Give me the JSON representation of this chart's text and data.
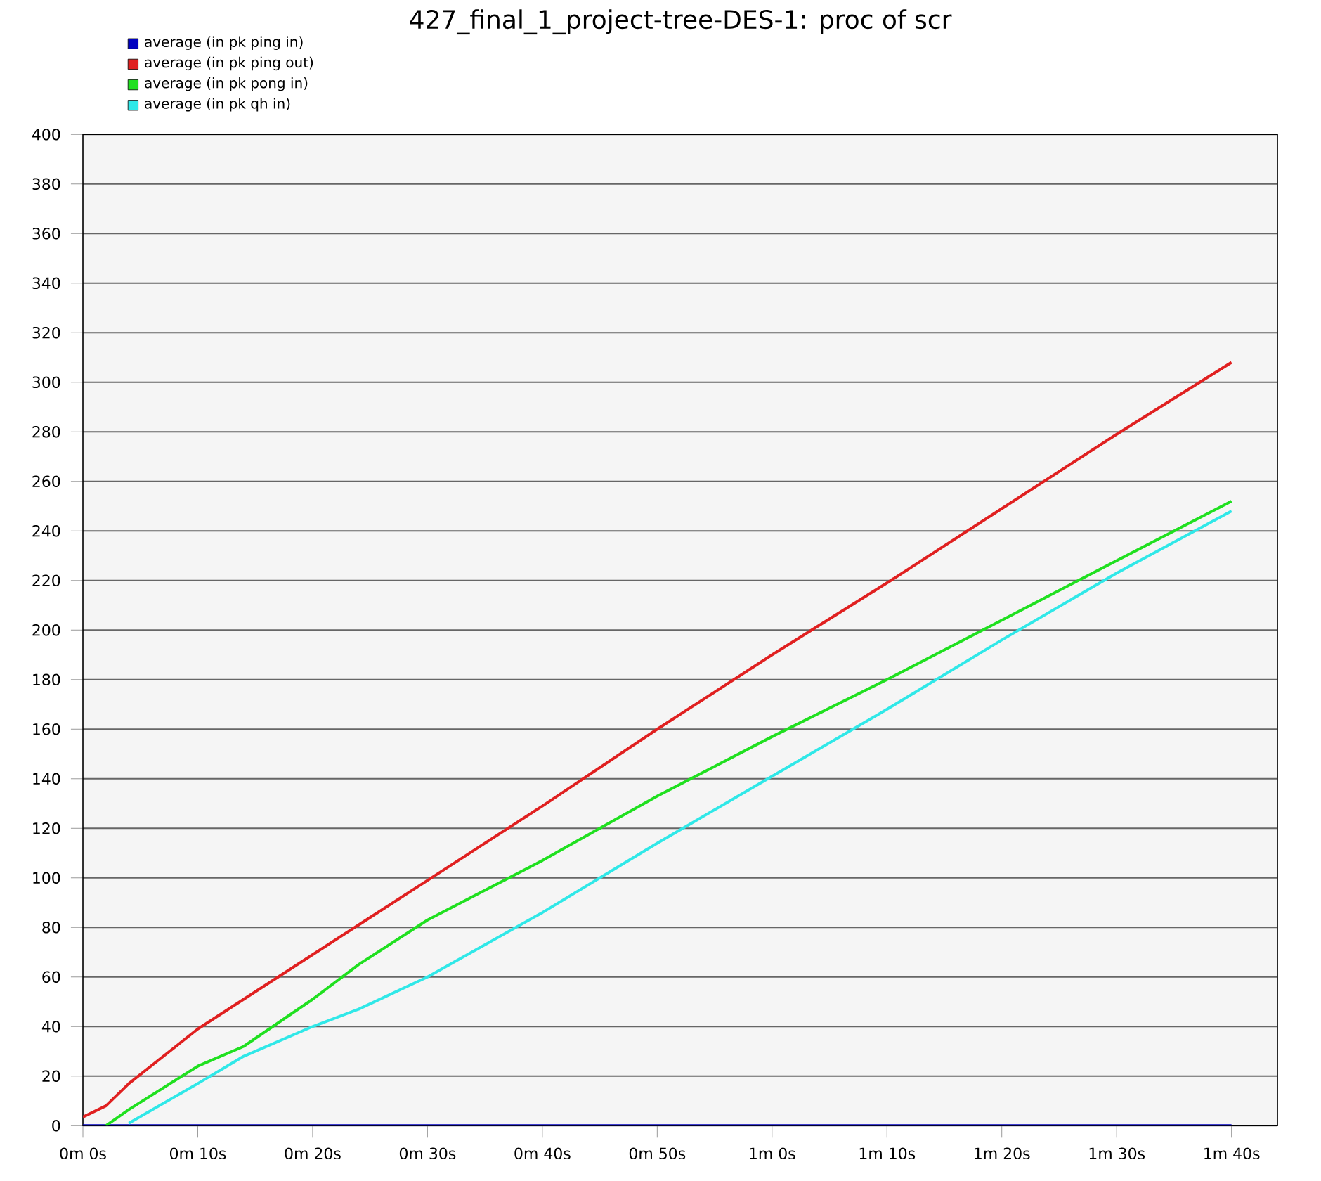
{
  "chart_data": {
    "type": "line",
    "title": "427_final_1_project-tree-DES-1: proc of scr",
    "categories": [
      "0m 0s",
      null,
      null,
      null,
      null,
      "0m 10s",
      null,
      null,
      null,
      null,
      "0m 20s",
      null,
      null,
      null,
      null,
      "0m 30s",
      null,
      null,
      null,
      null,
      "0m 40s",
      null,
      null,
      null,
      null,
      "0m 50s",
      null,
      null,
      null,
      null,
      "1m 0s",
      null,
      null,
      null,
      null,
      "1m 10s",
      null,
      null,
      null,
      null,
      "1m 20s",
      null,
      null,
      null,
      null,
      "1m 30s",
      null,
      null,
      null,
      null,
      "1m 40s",
      null,
      null
    ],
    "ylim": [
      0,
      400
    ],
    "yticks": [
      0,
      20,
      40,
      60,
      80,
      100,
      120,
      140,
      160,
      180,
      200,
      220,
      240,
      260,
      280,
      300,
      320,
      340,
      360,
      380,
      400
    ],
    "grid": "y",
    "legend": "top left",
    "marker": "none",
    "line_style": "solid",
    "series": [
      {
        "name": "average (in pk ping in)",
        "color": "#0000c0",
        "values": [
          0,
          null,
          null,
          null,
          null,
          null,
          null,
          null,
          null,
          null,
          null,
          null,
          null,
          null,
          null,
          null,
          null,
          null,
          null,
          null,
          null,
          null,
          null,
          null,
          null,
          null,
          null,
          null,
          null,
          null,
          null,
          null,
          null,
          null,
          null,
          null,
          null,
          null,
          null,
          null,
          null,
          null,
          null,
          null,
          null,
          null,
          null,
          null,
          null,
          null,
          0,
          null,
          null
        ]
      },
      {
        "name": "average (in pk ping out)",
        "color": "#e02020",
        "values": [
          3.5,
          8,
          17,
          null,
          null,
          39,
          null,
          null,
          null,
          null,
          69,
          null,
          null,
          null,
          null,
          99,
          null,
          null,
          null,
          null,
          129,
          null,
          null,
          null,
          null,
          160,
          null,
          null,
          null,
          null,
          190,
          null,
          null,
          null,
          null,
          219,
          null,
          null,
          null,
          null,
          249,
          null,
          null,
          null,
          null,
          279,
          null,
          null,
          null,
          null,
          308,
          null,
          null
        ]
      },
      {
        "name": "average (in pk pong in)",
        "color": "#20e020",
        "values": [
          null,
          0,
          6.5,
          null,
          null,
          24,
          null,
          32,
          null,
          null,
          51,
          null,
          65,
          null,
          null,
          83,
          null,
          null,
          null,
          null,
          107,
          null,
          null,
          null,
          null,
          133,
          null,
          null,
          null,
          null,
          157,
          null,
          null,
          null,
          null,
          180,
          null,
          null,
          null,
          null,
          204,
          null,
          null,
          null,
          null,
          228,
          null,
          null,
          null,
          null,
          252,
          null,
          null
        ]
      },
      {
        "name": "average (in pk qh in)",
        "color": "#30e8e8",
        "values": [
          null,
          null,
          1,
          null,
          null,
          17,
          null,
          28,
          null,
          null,
          40,
          null,
          47,
          null,
          null,
          60,
          null,
          null,
          null,
          null,
          86,
          null,
          null,
          null,
          null,
          114,
          null,
          null,
          null,
          null,
          141,
          null,
          null,
          null,
          null,
          168,
          null,
          null,
          null,
          null,
          196,
          null,
          null,
          null,
          null,
          223,
          null,
          null,
          null,
          null,
          248,
          null,
          null
        ]
      }
    ]
  }
}
